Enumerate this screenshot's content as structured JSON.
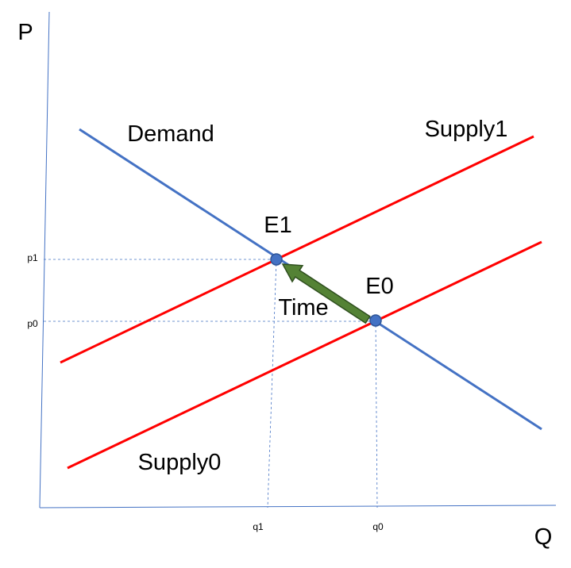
{
  "axes": {
    "y_label": "P",
    "x_label": "Q"
  },
  "curves": [
    {
      "label": "Demand"
    },
    {
      "label": "Supply1"
    },
    {
      "label": "Supply0"
    }
  ],
  "points": [
    {
      "label": "E1"
    },
    {
      "label": "E0"
    }
  ],
  "ticks": {
    "y": [
      "p1",
      "p0"
    ],
    "x": [
      "q1",
      "q0"
    ]
  },
  "arrow": {
    "label": "Time"
  }
}
